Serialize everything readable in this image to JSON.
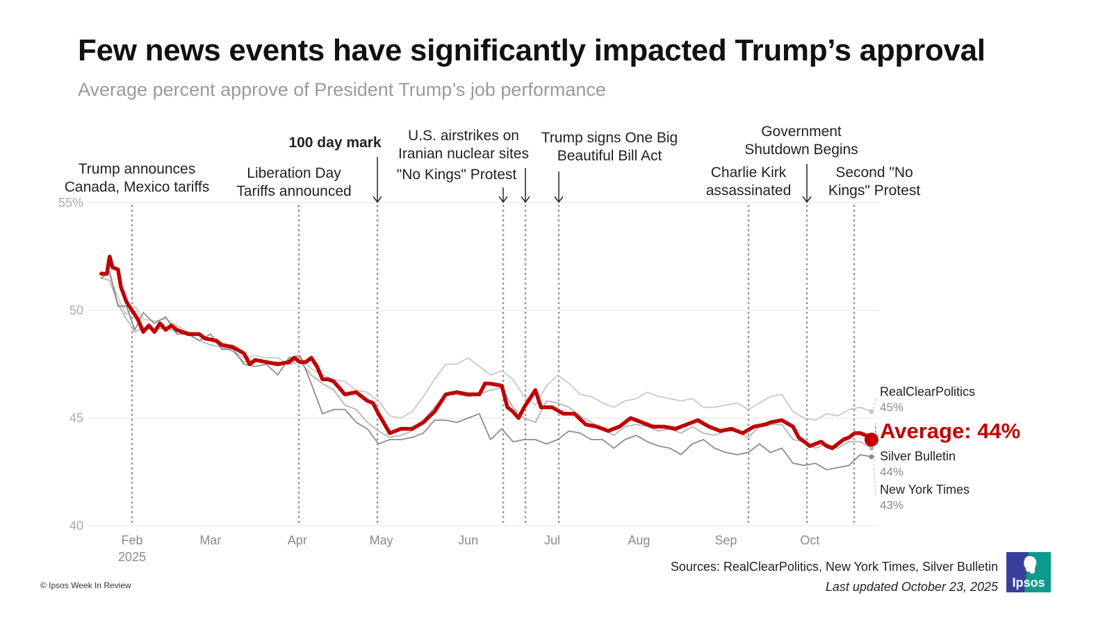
{
  "header": {
    "title": "Few news events have significantly impacted Trump’s approval",
    "subtitle": "Average percent approve of President Trump’s job performance"
  },
  "footer": {
    "sources": "Sources: RealClearPolitics, New York Times, Silver Bulletin",
    "updated": "Last updated October 23, 2025",
    "copyright": "© Ipsos Week In Review",
    "logo_text": "Ipsos",
    "logo_colors": {
      "left": "#3a3f9e",
      "right": "#0a9b8c"
    }
  },
  "chart_data": {
    "type": "line",
    "title": "Few news events have significantly impacted Trump’s approval",
    "subtitle": "Average percent approve of President Trump’s job performance",
    "xlabel": "",
    "ylabel": "",
    "ylim": [
      40,
      55
    ],
    "xlim_days": [
      0,
      280
    ],
    "x_origin": "2025-01-01",
    "grid": true,
    "y_ticks": [
      {
        "value": 40,
        "label": "40"
      },
      {
        "value": 45,
        "label": "45"
      },
      {
        "value": 50,
        "label": "50"
      },
      {
        "value": 55,
        "label": "55%"
      }
    ],
    "x_ticks": [
      {
        "day": 32,
        "label": "Feb",
        "sub": "2025"
      },
      {
        "day": 60,
        "label": "Mar",
        "sub": ""
      },
      {
        "day": 91,
        "label": "Apr",
        "sub": ""
      },
      {
        "day": 121,
        "label": "May",
        "sub": ""
      },
      {
        "day": 152,
        "label": "Jun",
        "sub": ""
      },
      {
        "day": 182,
        "label": "Jul",
        "sub": ""
      },
      {
        "day": 213,
        "label": "Aug",
        "sub": ""
      },
      {
        "day": 244,
        "label": "Sep",
        "sub": ""
      },
      {
        "day": 274,
        "label": "Oct",
        "sub": ""
      }
    ],
    "colors": {
      "average": "#c00000",
      "rcp": "#c8c8c8",
      "sb": "#b4b4b4",
      "nyt": "#8c8c8c",
      "event_line": "#999999",
      "grid": "#ececec"
    },
    "events": [
      {
        "day": 32,
        "lines": [
          "Trump announces",
          "Canada, Mexico tariffs"
        ],
        "bold": false,
        "arrow": false
      },
      {
        "day": 92,
        "lines": [
          "Liberation Day",
          "Tariffs announced"
        ],
        "bold": false,
        "arrow": false
      },
      {
        "day": 120,
        "lines": [
          "100 day mark"
        ],
        "bold": true,
        "arrow": true
      },
      {
        "day": 165,
        "lines": [
          "\"No Kings\" Protest"
        ],
        "bold": false,
        "arrow": true
      },
      {
        "day": 173,
        "lines": [
          "U.S. airstrikes on",
          "Iranian nuclear sites"
        ],
        "bold": false,
        "arrow": true
      },
      {
        "day": 185,
        "lines": [
          "Trump signs One Big",
          "Beautiful Bill Act"
        ],
        "bold": false,
        "arrow": true
      },
      {
        "day": 253,
        "lines": [
          "Charlie Kirk",
          "assassinated"
        ],
        "bold": false,
        "arrow": false
      },
      {
        "day": 274,
        "lines": [
          "Government",
          "Shutdown Begins"
        ],
        "bold": false,
        "arrow": true
      },
      {
        "day": 291,
        "lines": [
          "Second \"No",
          "Kings\" Protest"
        ],
        "bold": false,
        "arrow": false
      }
    ],
    "series": [
      {
        "name": "RealClearPolitics",
        "end_label": "45%",
        "days": [
          21,
          24,
          27,
          30,
          33,
          36,
          40,
          44,
          48,
          52,
          56,
          60,
          64,
          68,
          72,
          76,
          80,
          84,
          88,
          92,
          96,
          100,
          104,
          108,
          112,
          116,
          120,
          124,
          128,
          132,
          136,
          140,
          144,
          148,
          152,
          156,
          160,
          164,
          168,
          172,
          176,
          180,
          184,
          188,
          192,
          196,
          200,
          204,
          208,
          212,
          216,
          220,
          224,
          228,
          232,
          236,
          240,
          244,
          248,
          252,
          256,
          260,
          264,
          268,
          272,
          276,
          280,
          284,
          288,
          292,
          296
        ],
        "values": [
          51.8,
          51.6,
          50.6,
          49.8,
          50.2,
          49.6,
          49.5,
          49.6,
          49.3,
          49.0,
          48.9,
          48.6,
          48.4,
          48.1,
          47.8,
          47.9,
          47.8,
          47.8,
          47.5,
          47.8,
          47.3,
          47.0,
          46.8,
          46.7,
          46.3,
          46.2,
          45.8,
          45.1,
          45.0,
          45.3,
          46.0,
          46.8,
          47.5,
          47.5,
          47.8,
          47.4,
          47.0,
          47.2,
          46.8,
          46.0,
          45.6,
          46.5,
          47.0,
          46.6,
          46.1,
          46.0,
          45.7,
          45.5,
          45.8,
          45.9,
          46.2,
          46.0,
          45.9,
          45.8,
          45.9,
          45.5,
          45.5,
          45.6,
          45.7,
          45.4,
          45.7,
          46.0,
          46.1,
          45.3,
          45.0,
          44.9,
          45.2,
          45.1,
          45.4,
          45.5,
          45.3
        ]
      },
      {
        "name": "Silver Bulletin",
        "end_label": "44%",
        "days": [
          21,
          24,
          27,
          30,
          33,
          36,
          40,
          44,
          48,
          52,
          56,
          60,
          64,
          68,
          72,
          76,
          80,
          84,
          88,
          92,
          96,
          100,
          104,
          108,
          112,
          116,
          120,
          124,
          128,
          132,
          136,
          140,
          144,
          148,
          152,
          156,
          160,
          164,
          168,
          172,
          176,
          180,
          184,
          188,
          192,
          196,
          200,
          204,
          208,
          212,
          216,
          220,
          224,
          228,
          232,
          236,
          240,
          244,
          248,
          252,
          256,
          260,
          264,
          268,
          272,
          276,
          280,
          284,
          288,
          292,
          296
        ],
        "values": [
          51.5,
          51.4,
          50.3,
          49.6,
          49.0,
          49.2,
          49.1,
          49.2,
          49.0,
          48.9,
          48.6,
          48.4,
          48.3,
          48.1,
          47.6,
          47.7,
          47.6,
          47.6,
          47.5,
          47.6,
          47.0,
          46.6,
          46.3,
          45.6,
          45.4,
          44.8,
          44.4,
          44.1,
          44.2,
          44.4,
          44.9,
          45.5,
          46.1,
          46.1,
          46.0,
          46.1,
          46.3,
          46.4,
          45.5,
          45.0,
          44.8,
          45.8,
          45.7,
          45.5,
          45.1,
          44.8,
          44.5,
          44.2,
          44.6,
          44.7,
          44.6,
          44.4,
          44.5,
          44.3,
          44.6,
          44.3,
          44.2,
          44.4,
          44.4,
          44.1,
          44.6,
          44.7,
          44.7,
          44.0,
          43.9,
          43.6,
          43.8,
          43.6,
          43.9,
          43.9,
          43.6
        ]
      },
      {
        "name": "New York Times",
        "end_label": "43%",
        "days": [
          21,
          24,
          27,
          30,
          33,
          36,
          40,
          44,
          48,
          52,
          56,
          60,
          64,
          68,
          72,
          76,
          80,
          84,
          88,
          92,
          96,
          100,
          104,
          108,
          112,
          116,
          120,
          124,
          128,
          132,
          136,
          140,
          144,
          148,
          152,
          156,
          160,
          164,
          168,
          172,
          176,
          180,
          184,
          188,
          192,
          196,
          200,
          204,
          208,
          212,
          216,
          220,
          224,
          228,
          232,
          236,
          240,
          244,
          248,
          252,
          256,
          260,
          264,
          268,
          272,
          276,
          280,
          284,
          288,
          292,
          296
        ],
        "values": [
          51.5,
          51.8,
          50.2,
          50.2,
          49.1,
          49.9,
          49.4,
          49.7,
          48.9,
          48.9,
          48.6,
          48.9,
          48.2,
          48.2,
          47.5,
          47.4,
          47.5,
          47.0,
          47.8,
          47.9,
          46.6,
          45.2,
          45.4,
          45.4,
          44.8,
          44.5,
          43.8,
          44.0,
          44.0,
          44.1,
          44.3,
          44.9,
          44.9,
          44.8,
          45.0,
          45.2,
          44.0,
          44.5,
          43.9,
          44.0,
          44.0,
          43.8,
          44.0,
          44.4,
          44.3,
          44.0,
          44.0,
          43.6,
          44.0,
          44.2,
          43.9,
          43.7,
          43.6,
          43.3,
          43.8,
          44.0,
          43.6,
          43.4,
          43.3,
          43.4,
          43.8,
          43.4,
          43.6,
          42.9,
          42.8,
          42.9,
          42.6,
          42.7,
          42.8,
          43.3,
          43.2
        ]
      },
      {
        "name": "Average",
        "end_label": "Average: 44%",
        "days": [
          21,
          23,
          24,
          25,
          27,
          28,
          30,
          32,
          34,
          36,
          38,
          40,
          42,
          44,
          46,
          48,
          52,
          56,
          58,
          62,
          64,
          68,
          72,
          74,
          76,
          80,
          84,
          88,
          90,
          92,
          94,
          96,
          98,
          100,
          102,
          104,
          106,
          108,
          112,
          116,
          118,
          120,
          124,
          128,
          132,
          136,
          140,
          144,
          148,
          152,
          156,
          158,
          160,
          164,
          166,
          168,
          170,
          172,
          174,
          176,
          178,
          180,
          182,
          186,
          190,
          194,
          198,
          202,
          206,
          210,
          214,
          218,
          222,
          226,
          230,
          234,
          238,
          242,
          246,
          250,
          254,
          258,
          260,
          264,
          268,
          270,
          272,
          274,
          276,
          278,
          280,
          282,
          284,
          286,
          288,
          290,
          292,
          294,
          296
        ],
        "values": [
          51.7,
          51.7,
          52.5,
          52.0,
          51.9,
          51.1,
          50.4,
          50.0,
          49.6,
          49.0,
          49.3,
          49.0,
          49.4,
          49.1,
          49.3,
          49.1,
          48.9,
          48.9,
          48.7,
          48.6,
          48.4,
          48.3,
          48.0,
          47.5,
          47.7,
          47.6,
          47.5,
          47.6,
          47.8,
          47.6,
          47.6,
          47.8,
          47.4,
          46.8,
          46.8,
          46.7,
          46.4,
          46.1,
          46.2,
          45.8,
          45.7,
          45.2,
          44.3,
          44.5,
          44.5,
          44.8,
          45.3,
          46.1,
          46.2,
          46.1,
          46.1,
          46.6,
          46.6,
          46.5,
          45.5,
          45.3,
          45.0,
          45.5,
          45.9,
          46.3,
          45.5,
          45.5,
          45.5,
          45.2,
          45.2,
          44.7,
          44.6,
          44.4,
          44.6,
          45.0,
          44.8,
          44.6,
          44.6,
          44.5,
          44.7,
          44.9,
          44.6,
          44.4,
          44.5,
          44.3,
          44.6,
          44.7,
          44.8,
          44.9,
          44.6,
          44.1,
          43.9,
          43.7,
          43.8,
          43.9,
          43.7,
          43.6,
          43.8,
          44.0,
          44.1,
          44.3,
          44.3,
          44.2,
          44.0
        ]
      }
    ],
    "end_labels": [
      {
        "series": "RealClearPolitics",
        "name": "RealClearPolitics",
        "value": "45%"
      },
      {
        "series": "Average",
        "name": "Average: 44%",
        "value": ""
      },
      {
        "series": "Silver Bulletin",
        "name": "Silver Bulletin",
        "value": "44%"
      },
      {
        "series": "New York Times",
        "name": "New York Times",
        "value": "43%"
      }
    ]
  }
}
